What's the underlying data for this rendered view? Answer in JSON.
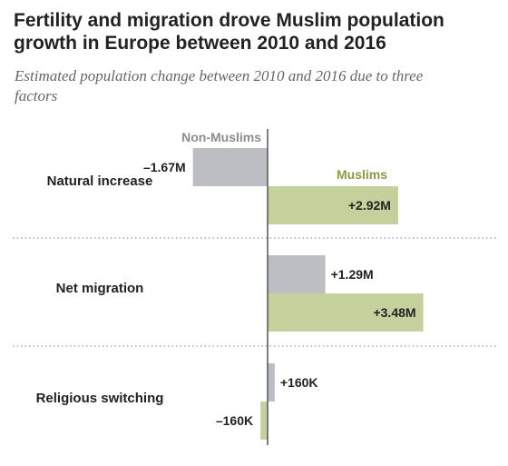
{
  "title": "Fertility and migration drove Muslim population growth in Europe between 2010 and 2016",
  "subtitle": "Estimated population change between 2010 and 2016 due to three factors",
  "colors": {
    "non_muslims": "#bdbec3",
    "muslims": "#c5d19c",
    "muslims_label": "#8a9a48",
    "non_muslims_label": "#8c8c8c",
    "axis": "#555555"
  },
  "chart_data": {
    "type": "bar",
    "orientation": "horizontal",
    "categories": [
      "Natural increase",
      "Net migration",
      "Religious switching"
    ],
    "series": [
      {
        "name": "Non-Muslims",
        "values": [
          -1.67,
          1.29,
          0.16
        ],
        "labels": [
          "–1.67M",
          "+1.29M",
          "+160K"
        ]
      },
      {
        "name": "Muslims",
        "values": [
          2.92,
          3.48,
          -0.16
        ],
        "labels": [
          "+2.92M",
          "+3.48M",
          "–160K"
        ]
      }
    ],
    "unit": "millions",
    "legend_placement": "inline"
  }
}
